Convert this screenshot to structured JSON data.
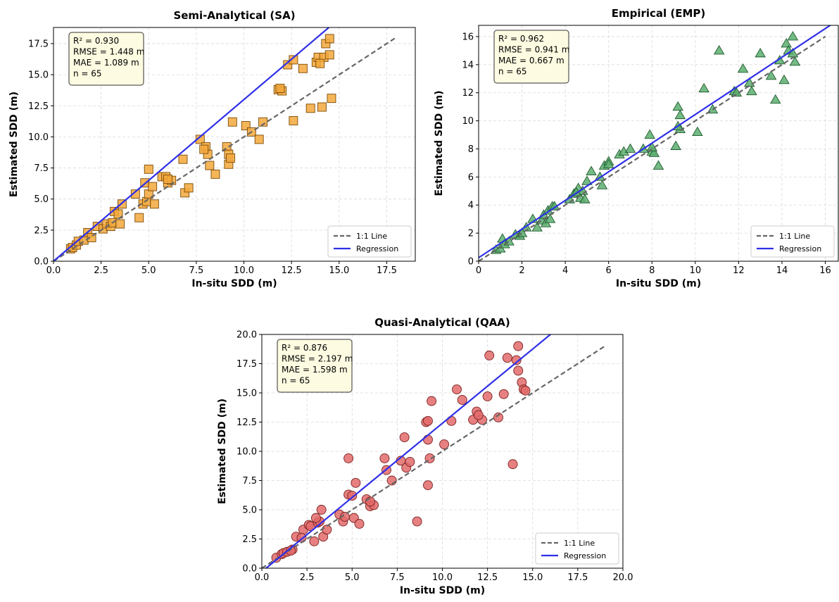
{
  "chart_data": [
    {
      "type": "scatter",
      "title": "Semi-Analytical (SA)",
      "xlabel": "In-situ SDD (m)",
      "ylabel": "Estimated SDD (m)",
      "xlim": [
        0,
        19
      ],
      "ylim": [
        0,
        18.8
      ],
      "xticks": [
        "0.0",
        "2.5",
        "5.0",
        "7.5",
        "10.0",
        "12.5",
        "15.0",
        "17.5"
      ],
      "xtick_values": [
        0,
        2.5,
        5,
        7.5,
        10,
        12.5,
        15,
        17.5
      ],
      "yticks": [
        "0.0",
        "2.5",
        "5.0",
        "7.5",
        "10.0",
        "12.5",
        "15.0",
        "17.5"
      ],
      "ytick_values": [
        0,
        2.5,
        5,
        7.5,
        10,
        12.5,
        15,
        17.5
      ],
      "grid": true,
      "marker": "square",
      "marker_color": "#f3a83c",
      "stats": [
        "R² = 0.930",
        "RMSE = 1.448 m",
        "MAE = 1.089 m",
        "n = 65"
      ],
      "legend_position": "lower-right",
      "legend": [
        "1:1 Line",
        "Regression"
      ],
      "one_to_one": [
        0,
        18
      ],
      "regression": {
        "intercept": 0.0,
        "slope": 1.3
      },
      "points": [
        [
          0.9,
          1.0
        ],
        [
          1.0,
          1.1
        ],
        [
          1.2,
          1.3
        ],
        [
          1.3,
          1.6
        ],
        [
          1.6,
          1.7
        ],
        [
          1.8,
          2.3
        ],
        [
          2.0,
          1.9
        ],
        [
          2.3,
          2.8
        ],
        [
          2.6,
          2.6
        ],
        [
          2.8,
          3.0
        ],
        [
          3.0,
          2.8
        ],
        [
          3.1,
          3.1
        ],
        [
          3.2,
          4.0
        ],
        [
          3.4,
          3.8
        ],
        [
          3.5,
          3.0
        ],
        [
          3.6,
          4.6
        ],
        [
          4.3,
          5.4
        ],
        [
          4.5,
          3.5
        ],
        [
          4.7,
          4.6
        ],
        [
          4.8,
          6.3
        ],
        [
          4.9,
          4.8
        ],
        [
          5.0,
          7.4
        ],
        [
          5.0,
          5.4
        ],
        [
          5.2,
          6.0
        ],
        [
          5.3,
          4.6
        ],
        [
          5.7,
          6.8
        ],
        [
          5.9,
          6.8
        ],
        [
          6.0,
          6.3
        ],
        [
          6.2,
          6.5
        ],
        [
          6.8,
          8.2
        ],
        [
          6.9,
          5.5
        ],
        [
          7.1,
          5.9
        ],
        [
          7.7,
          9.8
        ],
        [
          8.0,
          9.2
        ],
        [
          8.1,
          8.6
        ],
        [
          8.2,
          7.7
        ],
        [
          8.5,
          7.0
        ],
        [
          9.1,
          9.2
        ],
        [
          9.2,
          7.8
        ],
        [
          9.2,
          8.6
        ],
        [
          9.3,
          8.3
        ],
        [
          9.4,
          11.2
        ],
        [
          10.1,
          10.9
        ],
        [
          10.4,
          10.4
        ],
        [
          10.8,
          9.8
        ],
        [
          11.0,
          11.2
        ],
        [
          11.8,
          13.8
        ],
        [
          12.0,
          13.7
        ],
        [
          12.3,
          15.8
        ],
        [
          12.6,
          16.2
        ],
        [
          12.6,
          11.3
        ],
        [
          13.1,
          15.5
        ],
        [
          13.5,
          12.3
        ],
        [
          13.8,
          16.0
        ],
        [
          13.9,
          16.4
        ],
        [
          14.1,
          12.4
        ],
        [
          14.2,
          16.4
        ],
        [
          14.3,
          17.5
        ],
        [
          14.5,
          16.6
        ],
        [
          14.5,
          17.9
        ],
        [
          14.6,
          13.1
        ],
        [
          14.0,
          15.9
        ],
        [
          11.9,
          13.9
        ],
        [
          7.9,
          9.0
        ],
        [
          6.0,
          6.6
        ]
      ]
    },
    {
      "type": "scatter",
      "title": "Empirical (EMP)",
      "xlabel": "In-situ SDD (m)",
      "ylabel": "Estimated SDD (m)",
      "xlim": [
        0,
        16.6
      ],
      "ylim": [
        0,
        16.8
      ],
      "xticks": [
        "0",
        "2",
        "4",
        "6",
        "8",
        "10",
        "12",
        "14",
        "16"
      ],
      "xtick_values": [
        0,
        2,
        4,
        6,
        8,
        10,
        12,
        14,
        16
      ],
      "yticks": [
        "0",
        "2",
        "4",
        "6",
        "8",
        "10",
        "12",
        "14",
        "16"
      ],
      "ytick_values": [
        0,
        2,
        4,
        6,
        8,
        10,
        12,
        14,
        16
      ],
      "grid": true,
      "marker": "triangle",
      "marker_color": "#5cae6f",
      "stats": [
        "R² = 0.962",
        "RMSE = 0.941 m",
        "MAE = 0.667 m",
        "n = 65"
      ],
      "legend_position": "lower-right",
      "legend": [
        "1:1 Line",
        "Regression"
      ],
      "one_to_one": [
        0,
        16
      ],
      "regression": {
        "intercept": 0.25,
        "slope": 1.02
      },
      "points": [
        [
          0.8,
          0.8
        ],
        [
          1.0,
          0.9
        ],
        [
          1.1,
          1.6
        ],
        [
          1.2,
          1.2
        ],
        [
          1.4,
          1.4
        ],
        [
          1.7,
          1.9
        ],
        [
          1.9,
          1.8
        ],
        [
          2.2,
          2.4
        ],
        [
          2.5,
          3.0
        ],
        [
          2.7,
          2.4
        ],
        [
          2.9,
          2.9
        ],
        [
          3.0,
          3.3
        ],
        [
          3.1,
          2.7
        ],
        [
          3.2,
          3.6
        ],
        [
          3.3,
          3.0
        ],
        [
          3.4,
          3.9
        ],
        [
          4.2,
          4.4
        ],
        [
          4.4,
          4.8
        ],
        [
          4.6,
          5.2
        ],
        [
          4.7,
          4.5
        ],
        [
          4.8,
          5.0
        ],
        [
          4.9,
          4.4
        ],
        [
          5.0,
          5.7
        ],
        [
          5.2,
          6.4
        ],
        [
          5.6,
          6.0
        ],
        [
          5.7,
          5.4
        ],
        [
          5.8,
          6.8
        ],
        [
          6.0,
          7.1
        ],
        [
          6.5,
          7.6
        ],
        [
          6.7,
          7.8
        ],
        [
          7.0,
          8.0
        ],
        [
          7.6,
          8.0
        ],
        [
          7.9,
          9.0
        ],
        [
          8.0,
          7.8
        ],
        [
          8.1,
          7.7
        ],
        [
          8.3,
          6.8
        ],
        [
          9.1,
          8.2
        ],
        [
          9.2,
          11.0
        ],
        [
          9.3,
          10.4
        ],
        [
          9.3,
          9.4
        ],
        [
          10.1,
          9.2
        ],
        [
          10.4,
          12.3
        ],
        [
          10.8,
          10.8
        ],
        [
          11.1,
          15.0
        ],
        [
          11.8,
          12.1
        ],
        [
          11.9,
          12.0
        ],
        [
          12.2,
          13.7
        ],
        [
          12.5,
          12.7
        ],
        [
          12.6,
          12.1
        ],
        [
          13.0,
          14.8
        ],
        [
          13.5,
          13.2
        ],
        [
          13.7,
          11.5
        ],
        [
          13.9,
          14.3
        ],
        [
          14.1,
          12.9
        ],
        [
          14.2,
          15.5
        ],
        [
          14.3,
          15.0
        ],
        [
          14.5,
          14.8
        ],
        [
          14.5,
          16.0
        ],
        [
          14.6,
          14.2
        ],
        [
          9.2,
          9.6
        ],
        [
          6.0,
          6.9
        ],
        [
          3.5,
          3.9
        ],
        [
          2.0,
          2.0
        ],
        [
          4.5,
          4.9
        ],
        [
          8.0,
          8.1
        ]
      ]
    },
    {
      "type": "scatter",
      "title": "Quasi-Analytical (QAA)",
      "xlabel": "In-situ SDD (m)",
      "ylabel": "Estimated SDD (m)",
      "xlim": [
        0,
        20
      ],
      "ylim": [
        0,
        20
      ],
      "xticks": [
        "0.0",
        "2.5",
        "5.0",
        "7.5",
        "10.0",
        "12.5",
        "15.0",
        "17.5",
        "20.0"
      ],
      "xtick_values": [
        0,
        2.5,
        5,
        7.5,
        10,
        12.5,
        15,
        17.5,
        20
      ],
      "yticks": [
        "0.0",
        "2.5",
        "5.0",
        "7.5",
        "10.0",
        "12.5",
        "15.0",
        "17.5",
        "20.0"
      ],
      "ytick_values": [
        0,
        2.5,
        5,
        7.5,
        10,
        12.5,
        15,
        17.5,
        20
      ],
      "grid": true,
      "marker": "circle",
      "marker_color": "#e36b6b",
      "stats": [
        "R² = 0.876",
        "RMSE = 2.197 m",
        "MAE = 1.598 m",
        "n = 65"
      ],
      "legend_position": "lower-right",
      "legend": [
        "1:1 Line",
        "Regression"
      ],
      "one_to_one": [
        0,
        19
      ],
      "regression": {
        "intercept": -0.3,
        "slope": 1.27
      },
      "points": [
        [
          0.8,
          0.9
        ],
        [
          1.1,
          1.2
        ],
        [
          1.2,
          1.3
        ],
        [
          1.4,
          1.4
        ],
        [
          1.7,
          1.6
        ],
        [
          1.9,
          2.7
        ],
        [
          2.3,
          3.3
        ],
        [
          2.6,
          3.7
        ],
        [
          2.7,
          3.6
        ],
        [
          2.9,
          2.3
        ],
        [
          3.1,
          3.9
        ],
        [
          3.2,
          4.0
        ],
        [
          3.3,
          5.0
        ],
        [
          3.4,
          2.7
        ],
        [
          3.6,
          3.3
        ],
        [
          4.3,
          4.6
        ],
        [
          4.5,
          4.0
        ],
        [
          4.6,
          4.4
        ],
        [
          4.8,
          6.3
        ],
        [
          4.8,
          9.4
        ],
        [
          5.0,
          6.2
        ],
        [
          5.1,
          4.3
        ],
        [
          5.2,
          7.3
        ],
        [
          5.4,
          3.8
        ],
        [
          5.8,
          5.9
        ],
        [
          6.0,
          5.3
        ],
        [
          6.2,
          5.4
        ],
        [
          6.8,
          9.4
        ],
        [
          6.9,
          8.4
        ],
        [
          7.2,
          7.5
        ],
        [
          7.7,
          9.2
        ],
        [
          7.9,
          11.2
        ],
        [
          8.0,
          8.6
        ],
        [
          8.2,
          9.1
        ],
        [
          8.6,
          4.0
        ],
        [
          9.1,
          12.5
        ],
        [
          9.2,
          7.1
        ],
        [
          9.2,
          11.0
        ],
        [
          9.3,
          9.4
        ],
        [
          9.4,
          14.3
        ],
        [
          10.1,
          10.6
        ],
        [
          10.5,
          12.6
        ],
        [
          10.8,
          15.3
        ],
        [
          11.1,
          14.4
        ],
        [
          11.7,
          12.7
        ],
        [
          11.9,
          13.4
        ],
        [
          12.2,
          12.7
        ],
        [
          12.5,
          14.7
        ],
        [
          12.6,
          18.2
        ],
        [
          13.1,
          12.9
        ],
        [
          13.4,
          14.9
        ],
        [
          13.6,
          18.0
        ],
        [
          13.9,
          8.9
        ],
        [
          14.1,
          17.8
        ],
        [
          14.2,
          19.0
        ],
        [
          14.2,
          16.9
        ],
        [
          14.4,
          15.9
        ],
        [
          14.5,
          15.3
        ],
        [
          14.6,
          15.2
        ],
        [
          9.2,
          12.6
        ],
        [
          3.0,
          4.3
        ],
        [
          2.2,
          2.6
        ],
        [
          6.0,
          5.7
        ],
        [
          12.0,
          13.1
        ],
        [
          1.6,
          1.5
        ]
      ]
    }
  ]
}
